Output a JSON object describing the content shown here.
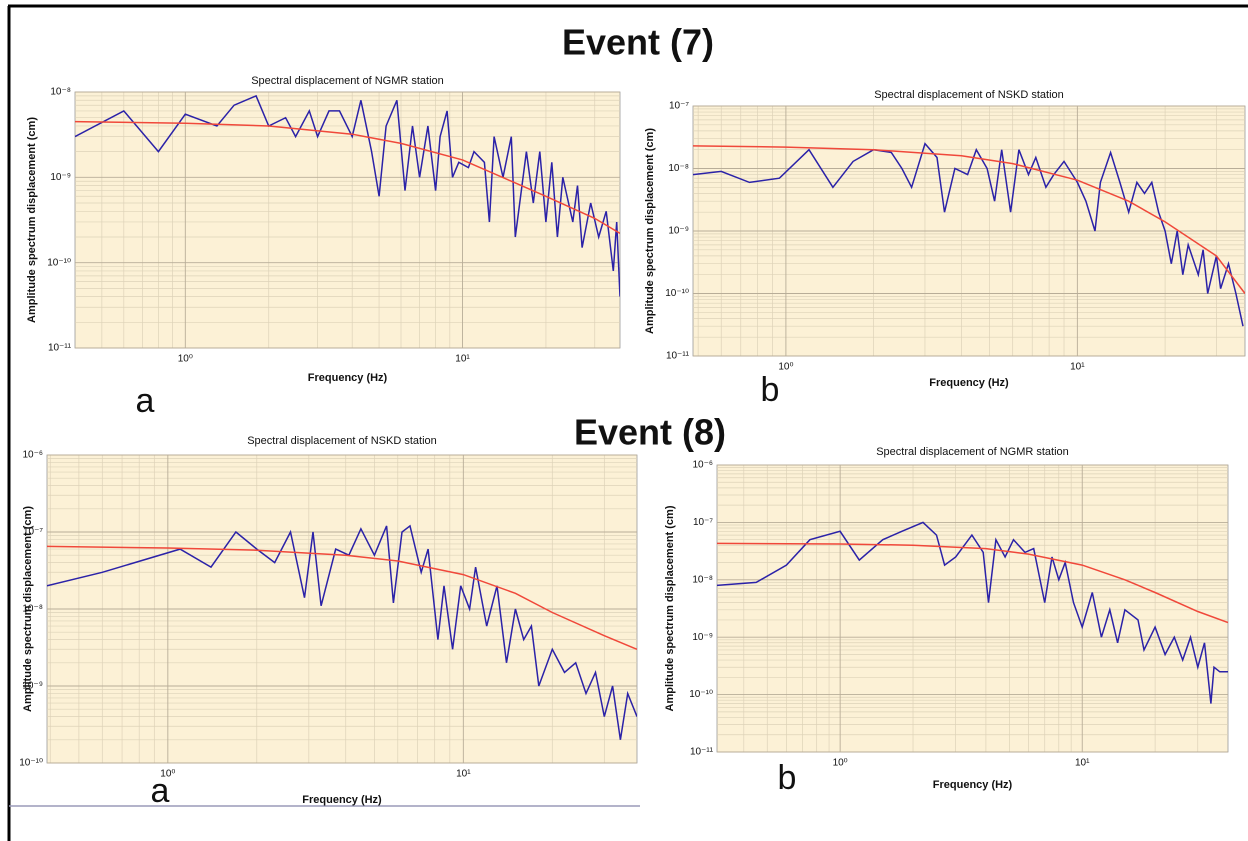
{
  "events": [
    "Event (7)",
    "Event (8)"
  ],
  "chart_data": [
    {
      "type": "line",
      "title": "Spectral displacement of NGMR station",
      "panel_label": "a",
      "xlabel": "Frequency (Hz)",
      "ylabel": "Amplitude spectrum displacement (cm)",
      "xscale": "log",
      "yscale": "log",
      "grid": true,
      "background": "#fcf1d6",
      "xlim": [
        0.4,
        37
      ],
      "ylim": [
        1e-11,
        1e-08
      ],
      "xticks": [
        {
          "value": 1,
          "label": "10⁰"
        },
        {
          "value": 10,
          "label": "10¹"
        }
      ],
      "yticks": [
        {
          "value": 1e-11,
          "label": "10⁻¹¹"
        },
        {
          "value": 1e-10,
          "label": "10⁻¹⁰"
        },
        {
          "value": 1e-09,
          "label": "10⁻⁹"
        },
        {
          "value": 1e-08,
          "label": "10⁻⁸"
        }
      ],
      "series": [
        {
          "color": "#2b22a8",
          "x": [
            0.4,
            0.6,
            0.8,
            1.0,
            1.3,
            1.5,
            1.8,
            2.0,
            2.3,
            2.5,
            2.8,
            3.0,
            3.3,
            3.6,
            4.0,
            4.3,
            4.7,
            5.0,
            5.3,
            5.8,
            6.2,
            6.6,
            7.0,
            7.5,
            8.0,
            8.3,
            8.8,
            9.2,
            9.7,
            10.5,
            11,
            12,
            12.5,
            13,
            14,
            15,
            15.5,
            17,
            18,
            19,
            20,
            21,
            22,
            23,
            25,
            26,
            27,
            29,
            31,
            33,
            35,
            36,
            37
          ],
          "values": [
            3e-09,
            6e-09,
            2e-09,
            5.5e-09,
            4e-09,
            7e-09,
            9e-09,
            4e-09,
            5e-09,
            3e-09,
            6e-09,
            3e-09,
            6e-09,
            6e-09,
            3e-09,
            8e-09,
            2e-09,
            6e-10,
            4e-09,
            8e-09,
            7e-10,
            4e-09,
            1e-09,
            4e-09,
            7e-10,
            3e-09,
            6e-09,
            1e-09,
            1.5e-09,
            1.3e-09,
            2e-09,
            1.5e-09,
            3e-10,
            3e-09,
            1e-09,
            3e-09,
            2e-10,
            2e-09,
            5e-10,
            2e-09,
            3e-10,
            1.5e-09,
            2e-10,
            1e-09,
            3e-10,
            8e-10,
            1.5e-10,
            5e-10,
            2e-10,
            4e-10,
            8e-11,
            3e-10,
            4e-11
          ]
        },
        {
          "color": "#f0483a",
          "x": [
            0.4,
            1,
            2,
            4,
            6,
            10,
            15,
            20,
            30,
            37
          ],
          "values": [
            4.5e-09,
            4.3e-09,
            4e-09,
            3.2e-09,
            2.5e-09,
            1.6e-09,
            9e-10,
            6e-10,
            3.3e-10,
            2.2e-10
          ]
        }
      ]
    },
    {
      "type": "line",
      "title": "Spectral displacement of NSKD station",
      "panel_label": "b",
      "xlabel": "Frequency (Hz)",
      "ylabel": "Amplitude spectrum displacement (cm)",
      "xscale": "log",
      "yscale": "log",
      "grid": true,
      "background": "#fcf1d6",
      "xlim": [
        0.48,
        37.6
      ],
      "ylim": [
        1e-11,
        1e-07
      ],
      "xticks": [
        {
          "value": 1,
          "label": "10⁰"
        },
        {
          "value": 10,
          "label": "10¹"
        }
      ],
      "yticks": [
        {
          "value": 1e-11,
          "label": "10⁻¹¹"
        },
        {
          "value": 1e-10,
          "label": "10⁻¹⁰"
        },
        {
          "value": 1e-09,
          "label": "10⁻⁹"
        },
        {
          "value": 1e-08,
          "label": "10⁻⁸"
        },
        {
          "value": 1e-07,
          "label": "10⁻⁷"
        }
      ],
      "series": [
        {
          "color": "#2b22a8",
          "x": [
            0.48,
            0.6,
            0.75,
            0.95,
            1.2,
            1.45,
            1.7,
            2.0,
            2.3,
            2.5,
            2.7,
            3.0,
            3.3,
            3.5,
            3.8,
            4.2,
            4.5,
            4.9,
            5.2,
            5.5,
            5.9,
            6.3,
            6.8,
            7.2,
            7.8,
            8.3,
            9,
            10,
            10.7,
            11.5,
            12,
            13,
            14,
            15,
            16,
            17,
            18,
            19,
            20,
            21,
            22,
            23,
            24,
            26,
            27,
            28,
            30,
            31,
            33,
            35,
            37
          ],
          "values": [
            8e-09,
            9e-09,
            6e-09,
            7e-09,
            2e-08,
            5e-09,
            1.3e-08,
            2e-08,
            1.8e-08,
            1e-08,
            5e-09,
            2.5e-08,
            1.5e-08,
            2e-09,
            1e-08,
            8e-09,
            2e-08,
            1e-08,
            3e-09,
            2e-08,
            2e-09,
            2e-08,
            8e-09,
            1.5e-08,
            5e-09,
            8e-09,
            1.3e-08,
            6e-09,
            3e-09,
            1e-09,
            6e-09,
            1.8e-08,
            6e-09,
            2e-09,
            6e-09,
            4e-09,
            6e-09,
            2e-09,
            1e-09,
            3e-10,
            1e-09,
            2e-10,
            6e-10,
            2e-10,
            5e-10,
            1e-10,
            4e-10,
            1.2e-10,
            3e-10,
            1e-10,
            3e-11
          ]
        },
        {
          "color": "#f0483a",
          "x": [
            0.48,
            1,
            2,
            4,
            6,
            10,
            15,
            20,
            30,
            37.6
          ],
          "values": [
            2.3e-08,
            2.2e-08,
            2e-08,
            1.6e-08,
            1.2e-08,
            6.5e-09,
            3e-09,
            1.4e-09,
            4e-10,
            1e-10
          ]
        }
      ]
    },
    {
      "type": "line",
      "title": "Spectral displacement of NSKD station",
      "panel_label": "a",
      "xlabel": "Frequency (Hz)",
      "ylabel": "Amplitude spectrum displacement (cm)",
      "xscale": "log",
      "yscale": "log",
      "grid": true,
      "background": "#fcf1d6",
      "xlim": [
        0.39,
        38.7
      ],
      "ylim": [
        1e-10,
        1e-06
      ],
      "xticks": [
        {
          "value": 1,
          "label": "10⁰"
        },
        {
          "value": 10,
          "label": "10¹"
        }
      ],
      "yticks": [
        {
          "value": 1e-10,
          "label": "10⁻¹⁰"
        },
        {
          "value": 1e-09,
          "label": "10⁻⁹"
        },
        {
          "value": 1e-08,
          "label": "10⁻⁸"
        },
        {
          "value": 1e-07,
          "label": "10⁻⁷"
        },
        {
          "value": 1e-06,
          "label": "10⁻⁶"
        }
      ],
      "series": [
        {
          "color": "#2b22a8",
          "x": [
            0.39,
            0.6,
            1.1,
            1.4,
            1.7,
            2.0,
            2.3,
            2.6,
            2.9,
            3.1,
            3.3,
            3.7,
            4.1,
            4.5,
            5.0,
            5.5,
            5.8,
            6.2,
            6.6,
            7.2,
            7.6,
            8.2,
            8.6,
            9.2,
            9.8,
            10.5,
            11,
            12,
            13,
            14,
            15,
            16,
            17,
            18,
            20,
            22,
            24,
            26,
            28,
            30,
            32,
            34,
            36,
            38.7
          ],
          "values": [
            2e-08,
            3e-08,
            6e-08,
            3.5e-08,
            1e-07,
            6e-08,
            4e-08,
            1e-07,
            1.4e-08,
            1e-07,
            1.1e-08,
            6e-08,
            5e-08,
            1.1e-07,
            5e-08,
            1.2e-07,
            1.2e-08,
            1e-07,
            1.2e-07,
            3e-08,
            6e-08,
            4e-09,
            2e-08,
            3e-09,
            2e-08,
            1e-08,
            3.5e-08,
            6e-09,
            2e-08,
            2e-09,
            1e-08,
            4e-09,
            6e-09,
            1e-09,
            3e-09,
            1.5e-09,
            2e-09,
            8e-10,
            1.5e-09,
            4e-10,
            1e-09,
            2e-10,
            8e-10,
            4e-10
          ]
        },
        {
          "color": "#f0483a",
          "x": [
            0.39,
            1,
            2,
            4,
            6,
            10,
            15,
            20,
            30,
            38.7
          ],
          "values": [
            6.5e-08,
            6.2e-08,
            5.8e-08,
            5e-08,
            4.2e-08,
            2.8e-08,
            1.6e-08,
            9e-09,
            4.5e-09,
            3e-09
          ]
        }
      ]
    },
    {
      "type": "line",
      "title": "Spectral displacement of NGMR station",
      "panel_label": "b",
      "xlabel": "Frequency (Hz)",
      "ylabel": "Amplitude spectrum displacement (cm)",
      "xscale": "log",
      "yscale": "log",
      "grid": true,
      "background": "#fcf1d6",
      "xlim": [
        0.31,
        40
      ],
      "ylim": [
        1e-11,
        1e-06
      ],
      "xticks": [
        {
          "value": 1,
          "label": "10⁰"
        },
        {
          "value": 10,
          "label": "10¹"
        }
      ],
      "yticks": [
        {
          "value": 1e-11,
          "label": "10⁻¹¹"
        },
        {
          "value": 1e-10,
          "label": "10⁻¹⁰"
        },
        {
          "value": 1e-09,
          "label": "10⁻⁹"
        },
        {
          "value": 1e-08,
          "label": "10⁻⁸"
        },
        {
          "value": 1e-07,
          "label": "10⁻⁷"
        },
        {
          "value": 1e-06,
          "label": "10⁻⁶"
        }
      ],
      "series": [
        {
          "color": "#2b22a8",
          "x": [
            0.31,
            0.45,
            0.6,
            0.75,
            1.0,
            1.2,
            1.5,
            1.8,
            2.2,
            2.5,
            2.7,
            3.0,
            3.5,
            3.9,
            4.1,
            4.4,
            4.8,
            5.2,
            5.8,
            6.3,
            7.0,
            7.5,
            8.0,
            8.5,
            9.2,
            10,
            11,
            12,
            13,
            14,
            15,
            17,
            18,
            20,
            22,
            24,
            26,
            28,
            30,
            32,
            34,
            35,
            37,
            40
          ],
          "values": [
            8e-09,
            9e-09,
            1.8e-08,
            5e-08,
            7e-08,
            2.2e-08,
            5e-08,
            7e-08,
            1e-07,
            6e-08,
            1.8e-08,
            2.5e-08,
            6e-08,
            3e-08,
            4e-09,
            5e-08,
            2.5e-08,
            5e-08,
            3e-08,
            3.5e-08,
            4e-09,
            2.5e-08,
            1e-08,
            2e-08,
            4e-09,
            1.5e-09,
            6e-09,
            1e-09,
            3e-09,
            8e-10,
            3e-09,
            2e-09,
            6e-10,
            1.5e-09,
            5e-10,
            1e-09,
            4e-10,
            1e-09,
            3e-10,
            8e-10,
            7e-11,
            3e-10,
            2.5e-10,
            2.5e-10
          ]
        },
        {
          "color": "#f0483a",
          "x": [
            0.31,
            1,
            2,
            4,
            6,
            10,
            15,
            20,
            30,
            40
          ],
          "values": [
            4.3e-08,
            4.2e-08,
            4e-08,
            3.5e-08,
            2.8e-08,
            1.8e-08,
            1e-08,
            6e-09,
            2.8e-09,
            1.8e-09
          ]
        }
      ]
    }
  ]
}
